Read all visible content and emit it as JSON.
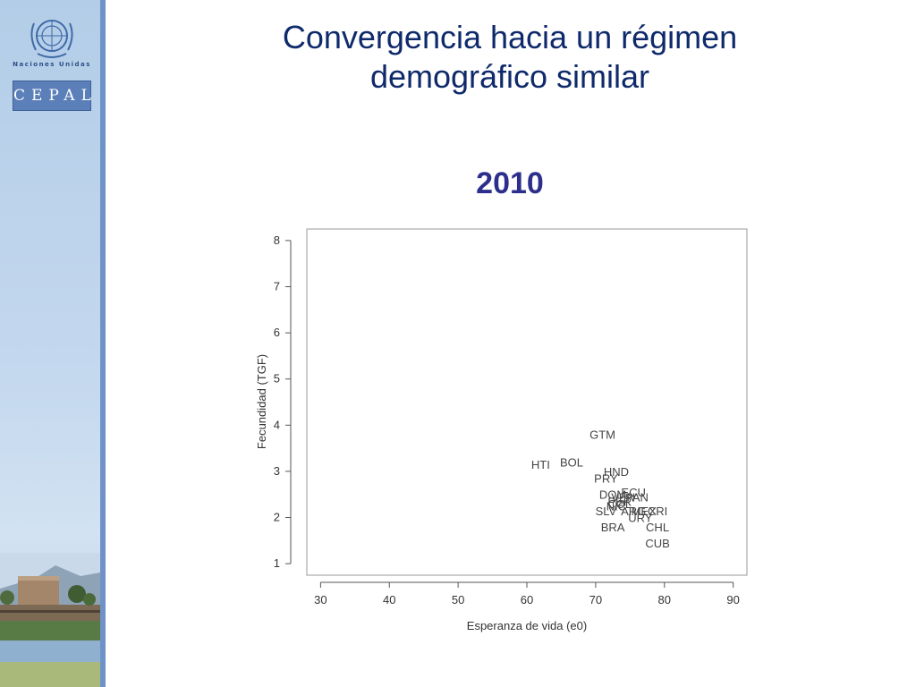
{
  "sidebar": {
    "un_label": "Naciones Unidas",
    "logo_text": "CEPAL",
    "accent_color": "#6f93c8"
  },
  "slide": {
    "title_line1": "Convergencia hacia un régimen",
    "title_line2": "demográfico similar",
    "year": "2010",
    "title_color": "#0f2a6b",
    "year_color": "#2d2f8c"
  },
  "chart_data": {
    "type": "scatter",
    "title": "",
    "xlabel": "Esperanza de vida (e0)",
    "ylabel": "Fecundidad (TGF)",
    "xlim": [
      28,
      92
    ],
    "ylim": [
      0.75,
      8.25
    ],
    "xticks": [
      30,
      40,
      50,
      60,
      70,
      80,
      90
    ],
    "yticks": [
      1,
      2,
      3,
      4,
      5,
      6,
      7,
      8
    ],
    "grid": false,
    "points": [
      {
        "label": "GTM",
        "x": 71.0,
        "y": 3.8
      },
      {
        "label": "HTI",
        "x": 62.0,
        "y": 3.15
      },
      {
        "label": "BOL",
        "x": 66.5,
        "y": 3.2
      },
      {
        "label": "HND",
        "x": 73.0,
        "y": 3.0
      },
      {
        "label": "PRY",
        "x": 71.5,
        "y": 2.85
      },
      {
        "label": "ECU",
        "x": 75.5,
        "y": 2.55
      },
      {
        "label": "PAN",
        "x": 76.0,
        "y": 2.45
      },
      {
        "label": "DOM",
        "x": 72.5,
        "y": 2.5
      },
      {
        "label": "VEN",
        "x": 74.0,
        "y": 2.45
      },
      {
        "label": "PER",
        "x": 73.5,
        "y": 2.35
      },
      {
        "label": "COL",
        "x": 73.5,
        "y": 2.3
      },
      {
        "label": "NIC",
        "x": 73.0,
        "y": 2.25
      },
      {
        "label": "SLV",
        "x": 71.5,
        "y": 2.15
      },
      {
        "label": "ARG",
        "x": 75.5,
        "y": 2.15
      },
      {
        "label": "MEX",
        "x": 77.0,
        "y": 2.15
      },
      {
        "label": "CRI",
        "x": 79.0,
        "y": 2.15
      },
      {
        "label": "URY",
        "x": 76.5,
        "y": 2.0
      },
      {
        "label": "BRA",
        "x": 72.5,
        "y": 1.8
      },
      {
        "label": "CHL",
        "x": 79.0,
        "y": 1.8
      },
      {
        "label": "CUB",
        "x": 79.0,
        "y": 1.45
      }
    ]
  }
}
